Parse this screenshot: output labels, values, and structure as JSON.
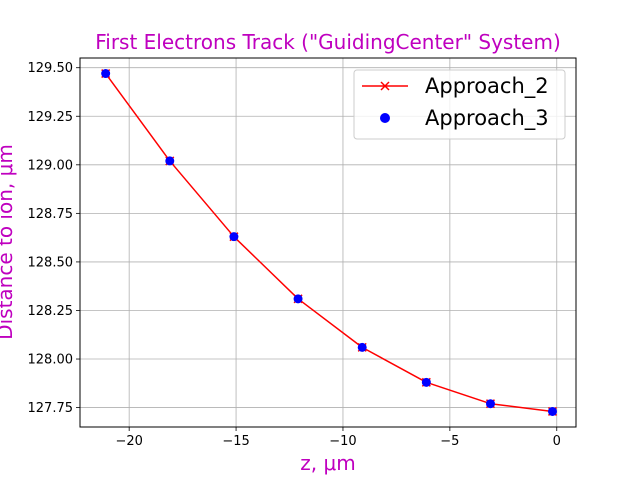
{
  "chart_data": {
    "type": "line",
    "title": "First Electrons Track (\"GuidingCenter\" System)",
    "xlabel": "z, μm",
    "ylabel": "Distance to ion, μm",
    "xlim": [
      -22.3,
      0.9
    ],
    "ylim": [
      127.65,
      129.55
    ],
    "x_ticks": [
      -20,
      -15,
      -10,
      -5,
      0
    ],
    "x_tick_labels": [
      "−20",
      "−15",
      "−10",
      "−5",
      "0"
    ],
    "y_ticks": [
      127.75,
      128.0,
      128.25,
      128.5,
      128.75,
      129.0,
      129.25,
      129.5
    ],
    "y_tick_labels": [
      "127.75",
      "128.00",
      "128.25",
      "128.50",
      "128.75",
      "129.00",
      "129.25",
      "129.50"
    ],
    "grid": true,
    "legend_position": "top-right",
    "series": [
      {
        "name": "Approach_2",
        "color": "#ff0000",
        "style": "line",
        "marker": "x",
        "x": [
          -21.1,
          -18.1,
          -15.1,
          -12.1,
          -9.1,
          -6.1,
          -3.1,
          -0.2
        ],
        "y": [
          129.47,
          129.02,
          128.63,
          128.31,
          128.06,
          127.88,
          127.77,
          127.73
        ]
      },
      {
        "name": "Approach_3",
        "color": "#0000ff",
        "style": "markers",
        "marker": "o",
        "x": [
          -21.1,
          -18.1,
          -15.1,
          -12.1,
          -9.1,
          -6.1,
          -3.1,
          -0.2
        ],
        "y": [
          129.47,
          129.02,
          128.63,
          128.31,
          128.06,
          127.88,
          127.77,
          127.73
        ]
      }
    ]
  }
}
